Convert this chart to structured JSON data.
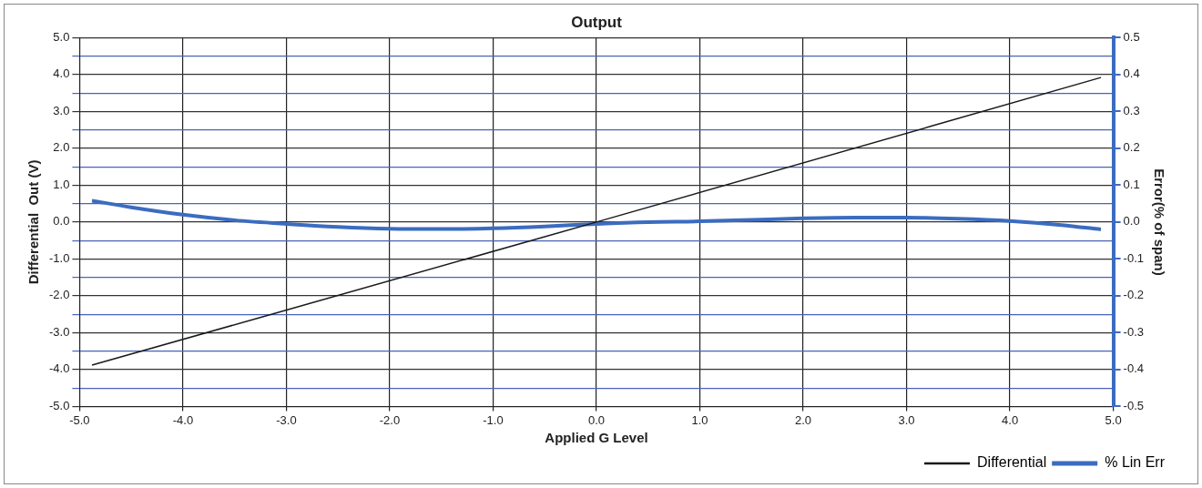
{
  "chart_data": {
    "type": "line",
    "title": "Output",
    "xlabel": "Applied G Level",
    "ylabel": "Differential  Out (V)",
    "y2label": "Error(% of span)",
    "series": [
      {
        "name": "Differential",
        "color": "#1a1a1a",
        "x": [
          -4.88,
          0,
          4.88
        ],
        "values": [
          -3.88,
          0,
          3.92
        ]
      },
      {
        "name": "% Lin Err",
        "color": "#3b6cc0",
        "axis": "y2",
        "x": [
          -4.88,
          -4.5,
          -4,
          -3.5,
          -3,
          -2.5,
          -2,
          -1.5,
          -1,
          -0.5,
          0,
          0.5,
          1,
          1.5,
          2,
          2.5,
          3,
          3.5,
          4,
          4.5,
          4.88
        ],
        "values": [
          0.058,
          0.04,
          0.02,
          0.005,
          -0.005,
          -0.013,
          -0.018,
          -0.019,
          -0.017,
          -0.012,
          -0.005,
          0,
          0.002,
          0.006,
          0.01,
          0.012,
          0.012,
          0.009,
          0.003,
          -0.008,
          -0.02
        ]
      }
    ],
    "xlim": [
      -5,
      5
    ],
    "xticks": [
      {
        "value": -5,
        "label": "-5.0"
      },
      {
        "value": -4,
        "label": "-4.0"
      },
      {
        "value": -3,
        "label": "-3.0"
      },
      {
        "value": -2,
        "label": "-2.0"
      },
      {
        "value": -1,
        "label": "-1.0"
      },
      {
        "value": 0,
        "label": "0.0"
      },
      {
        "value": 1,
        "label": "1.0"
      },
      {
        "value": 2,
        "label": "2.0"
      },
      {
        "value": 3,
        "label": "3.0"
      },
      {
        "value": 4,
        "label": "4.0"
      },
      {
        "value": 5,
        "label": "5.0"
      }
    ],
    "ylim": [
      -5,
      5
    ],
    "yticks": [
      {
        "value": -5,
        "label": "-5.0"
      },
      {
        "value": -4.5,
        "label": null
      },
      {
        "value": -4,
        "label": "-4.0"
      },
      {
        "value": -3.5,
        "label": null
      },
      {
        "value": -3,
        "label": "-3.0"
      },
      {
        "value": -2.5,
        "label": null
      },
      {
        "value": -2,
        "label": "-2.0"
      },
      {
        "value": -1.5,
        "label": null
      },
      {
        "value": -1,
        "label": "-1.0"
      },
      {
        "value": -0.5,
        "label": null
      },
      {
        "value": 0,
        "label": "0.0"
      },
      {
        "value": 0.5,
        "label": null
      },
      {
        "value": 1,
        "label": "1.0"
      },
      {
        "value": 1.5,
        "label": null
      },
      {
        "value": 2,
        "label": "2.0"
      },
      {
        "value": 2.5,
        "label": null
      },
      {
        "value": 3,
        "label": "3.0"
      },
      {
        "value": 3.5,
        "label": null
      },
      {
        "value": 4,
        "label": "4.0"
      },
      {
        "value": 4.5,
        "label": null
      },
      {
        "value": 5,
        "label": "5.0"
      }
    ],
    "y2lim": [
      -0.5,
      0.5
    ],
    "y2ticks": [
      {
        "value": -0.5,
        "label": "-0.5"
      },
      {
        "value": -0.4,
        "label": "-0.4"
      },
      {
        "value": -0.3,
        "label": "-0.3"
      },
      {
        "value": -0.2,
        "label": "-0.2"
      },
      {
        "value": -0.1,
        "label": "-0.1"
      },
      {
        "value": 0,
        "label": "0.0"
      },
      {
        "value": 0.1,
        "label": "0.1"
      },
      {
        "value": 0.2,
        "label": "0.2"
      },
      {
        "value": 0.3,
        "label": "0.3"
      },
      {
        "value": 0.4,
        "label": "0.4"
      },
      {
        "value": 0.5,
        "label": "0.5"
      }
    ],
    "grid": true,
    "legend": "bottom right",
    "marker": "none",
    "line_style": "solid"
  }
}
